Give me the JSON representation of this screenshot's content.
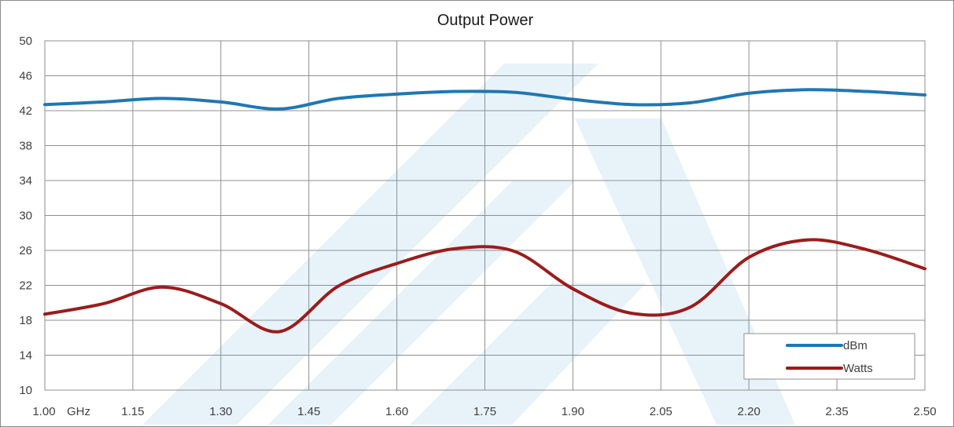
{
  "chart_data": {
    "type": "line",
    "title": "Output Power",
    "xlabel": "",
    "ylabel": "",
    "x_unit_label": "GHz",
    "xlim": [
      1.0,
      2.5
    ],
    "ylim": [
      10,
      50
    ],
    "x_ticks": [
      1.0,
      1.15,
      1.3,
      1.45,
      1.6,
      1.75,
      1.9,
      2.05,
      2.2,
      2.35,
      2.5
    ],
    "x_tick_labels": [
      "1.00",
      "1.15",
      "1.30",
      "1.45",
      "1.60",
      "1.75",
      "1.90",
      "2.05",
      "2.20",
      "2.35",
      "2.50"
    ],
    "y_ticks": [
      10,
      14,
      18,
      22,
      26,
      30,
      34,
      38,
      42,
      46,
      50
    ],
    "y_tick_labels": [
      "10",
      "14",
      "18",
      "22",
      "26",
      "30",
      "34",
      "38",
      "42",
      "46",
      "50"
    ],
    "grid": true,
    "legend_position": "bottom-right",
    "x": [
      1.0,
      1.1,
      1.2,
      1.3,
      1.4,
      1.5,
      1.6,
      1.7,
      1.8,
      1.9,
      2.0,
      2.1,
      2.2,
      2.3,
      2.4,
      2.5
    ],
    "series": [
      {
        "name": "dBm",
        "color": "#1f77b4",
        "values": [
          42.7,
          43.0,
          43.4,
          43.0,
          42.2,
          43.4,
          43.9,
          44.2,
          44.1,
          43.3,
          42.7,
          42.9,
          44.0,
          44.4,
          44.2,
          43.8
        ]
      },
      {
        "name": "Watts",
        "color": "#9b1c1c",
        "values": [
          18.7,
          19.9,
          21.8,
          19.9,
          16.7,
          21.9,
          24.5,
          26.2,
          25.9,
          21.6,
          18.8,
          19.5,
          25.2,
          27.2,
          26.1,
          23.9
        ]
      }
    ]
  }
}
